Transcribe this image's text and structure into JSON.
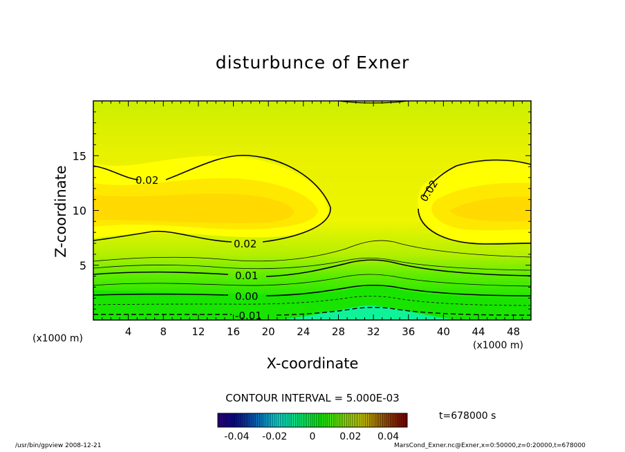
{
  "title": "disturbunce of Exner",
  "chart_data": {
    "type": "contour",
    "title": "disturbunce of Exner",
    "xlabel": "X-coordinate",
    "ylabel": "Z-coordinate",
    "x_unit": "(x1000 m)",
    "xlim": [
      0,
      50
    ],
    "ylim": [
      0,
      20
    ],
    "xticks": [
      "4",
      "8",
      "12",
      "16",
      "20",
      "24",
      "28",
      "32",
      "36",
      "40",
      "44",
      "48"
    ],
    "yticks": [
      "5",
      "10",
      "15"
    ],
    "contour_interval": "CONTOUR INTERVAL = 5.000E-03",
    "contour_labels": [
      "0.02",
      "0.02",
      "0.02",
      "0.01",
      "0.00",
      "-0.01"
    ],
    "colorbar": {
      "range": [
        -0.05,
        0.05
      ],
      "ticks": [
        "-0.04",
        "-0.02",
        "0",
        "0.02",
        "0.04"
      ],
      "colormap": "rainbow"
    },
    "colors": {
      "max_fill": "#ffd700",
      "mid_fill": "#e8ef00",
      "low_fill": "#2cf000",
      "min_fill": "#10f5b0"
    }
  },
  "time_label": "t=678000 s",
  "footer": {
    "left": "/usr/bin/gpview   2008-12-21",
    "right": "MarsCond_Exner.nc@Exner,x=0:50000,z=0:20000,t=678000"
  }
}
